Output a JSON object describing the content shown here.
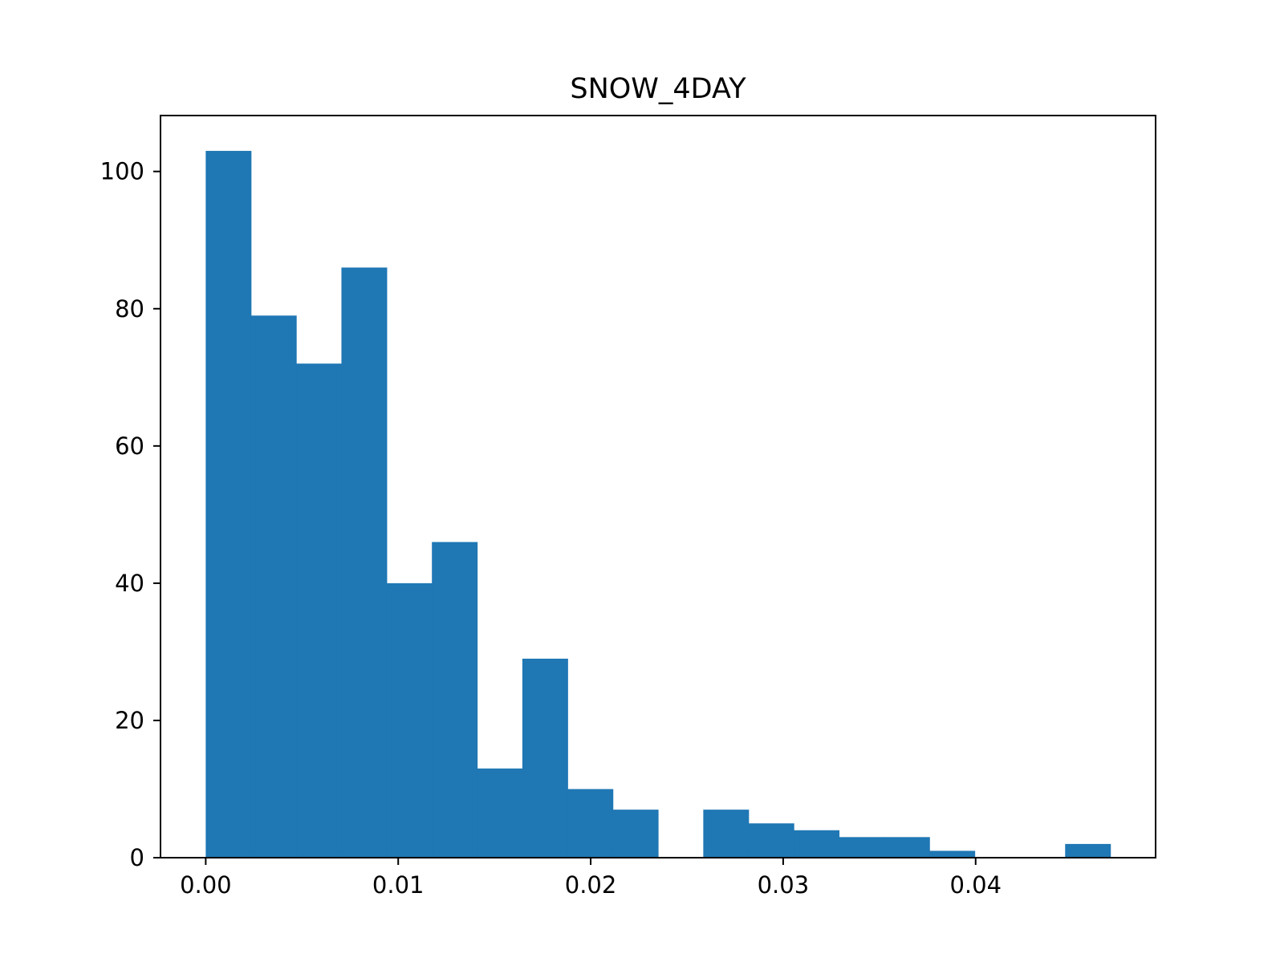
{
  "chart_data": {
    "type": "bar",
    "subtype": "histogram",
    "title": "SNOW_4DAY",
    "xlabel": "",
    "ylabel": "",
    "bin_edges": [
      0.0,
      0.00235,
      0.0047,
      0.00705,
      0.0094,
      0.01175,
      0.0141,
      0.01645,
      0.0188,
      0.02115,
      0.0235,
      0.02585,
      0.0282,
      0.03055,
      0.0329,
      0.03525,
      0.0376,
      0.03995,
      0.0423,
      0.04465,
      0.047
    ],
    "values": [
      103,
      79,
      72,
      86,
      40,
      46,
      13,
      29,
      10,
      7,
      0,
      7,
      5,
      4,
      3,
      3,
      1,
      0,
      0,
      2
    ],
    "xlim": [
      -0.00235,
      0.04935
    ],
    "ylim": [
      0,
      108.15
    ],
    "xticks": [
      0.0,
      0.01,
      0.02,
      0.03,
      0.04
    ],
    "xtick_labels": [
      "0.00",
      "0.01",
      "0.02",
      "0.03",
      "0.04"
    ],
    "yticks": [
      0,
      20,
      40,
      60,
      80,
      100
    ],
    "ytick_labels": [
      "0",
      "20",
      "40",
      "60",
      "80",
      "100"
    ],
    "grid": false,
    "legend": "none",
    "bar_color": "#1f77b4"
  }
}
